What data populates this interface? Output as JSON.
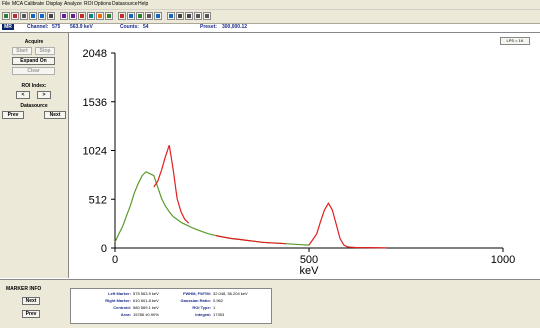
{
  "menu": [
    "File",
    "MCA",
    "Calibrate",
    "Display",
    "Analyze",
    "ROI",
    "Options",
    "Datasource",
    "Help"
  ],
  "toolbar": {
    "icons": [
      "start-icon",
      "stop-icon",
      "clear-icon",
      "copy-icon",
      "save-icon",
      "print-icon",
      "zoom-in-icon",
      "zoom-out-icon",
      "roi-icon",
      "mark-icon",
      "peak-icon",
      "scale-icon",
      "log-icon",
      "lin-icon",
      "auto-icon",
      "fit-icon",
      "prev-icon",
      "next-icon",
      "info-icon",
      "help-icon",
      "gear-icon",
      "about-icon"
    ]
  },
  "status": {
    "mode": "MR",
    "channel_label": "Channel:",
    "channel": "575",
    "energy": "563.9 keV",
    "counts_label": "Counts:",
    "counts": "54",
    "preset_label": "Preset:",
    "preset": "300,000.12"
  },
  "left": {
    "acquire": "Acquire",
    "start": "Start",
    "stop": "Stop",
    "expand": "Expand On",
    "clear": "Clear",
    "roi_label": "ROI Index:",
    "roi_prev": "<",
    "roi_next": ">",
    "datasource": "Datasource",
    "prev": "Prev",
    "next": "Next"
  },
  "plot": {
    "corner": "LPS = 1K"
  },
  "chart_data": {
    "type": "line",
    "xlabel": "keV",
    "xlim": [
      0,
      1000
    ],
    "ylim": [
      0,
      2048
    ],
    "xticks": [
      0,
      500,
      1000
    ],
    "yticks": [
      0,
      512,
      1024,
      1536,
      2048
    ],
    "grid": false,
    "series": [
      {
        "color": "#5a9a2a",
        "points": [
          [
            0,
            60
          ],
          [
            10,
            150
          ],
          [
            20,
            230
          ],
          [
            30,
            340
          ],
          [
            40,
            450
          ],
          [
            50,
            580
          ],
          [
            60,
            680
          ],
          [
            70,
            760
          ],
          [
            80,
            800
          ],
          [
            90,
            780
          ],
          [
            100,
            760
          ],
          [
            110,
            640
          ],
          [
            120,
            520
          ],
          [
            130,
            440
          ],
          [
            140,
            380
          ],
          [
            150,
            330
          ],
          [
            160,
            300
          ],
          [
            170,
            270
          ],
          [
            180,
            250
          ],
          [
            190,
            230
          ],
          [
            200,
            210
          ],
          [
            210,
            195
          ],
          [
            220,
            180
          ],
          [
            230,
            165
          ],
          [
            240,
            150
          ]
        ]
      },
      {
        "color": "#e02020",
        "points": [
          [
            100,
            640
          ],
          [
            110,
            700
          ],
          [
            120,
            820
          ],
          [
            130,
            960
          ],
          [
            140,
            1080
          ],
          [
            150,
            820
          ],
          [
            160,
            520
          ],
          [
            170,
            380
          ],
          [
            180,
            300
          ],
          [
            190,
            260
          ]
        ]
      },
      {
        "color": "#5a9a2a",
        "points": [
          [
            240,
            150
          ],
          [
            260,
            130
          ],
          [
            280,
            115
          ],
          [
            300,
            100
          ],
          [
            320,
            90
          ],
          [
            340,
            80
          ],
          [
            360,
            70
          ],
          [
            380,
            60
          ],
          [
            400,
            55
          ],
          [
            420,
            50
          ],
          [
            440,
            45
          ],
          [
            460,
            40
          ],
          [
            480,
            35
          ],
          [
            500,
            30
          ]
        ]
      },
      {
        "color": "#e02020",
        "points": [
          [
            260,
            130
          ],
          [
            280,
            115
          ],
          [
            300,
            100
          ],
          [
            320,
            90
          ],
          [
            340,
            80
          ],
          [
            360,
            70
          ],
          [
            380,
            60
          ],
          [
            400,
            55
          ],
          [
            420,
            50
          ],
          [
            440,
            45
          ]
        ]
      },
      {
        "color": "#e02020",
        "points": [
          [
            500,
            30
          ],
          [
            520,
            150
          ],
          [
            530,
            280
          ],
          [
            540,
            400
          ],
          [
            550,
            470
          ],
          [
            560,
            400
          ],
          [
            570,
            250
          ],
          [
            580,
            100
          ],
          [
            590,
            30
          ],
          [
            600,
            10
          ],
          [
            620,
            5
          ],
          [
            700,
            2
          ]
        ]
      }
    ]
  },
  "marker": {
    "title": "MARKER INFO",
    "next": "Next",
    "prev": "Prev",
    "left_marker_label": "Left Marker:",
    "left_marker": "575    563.9 keV",
    "right_marker_label": "Right Marker:",
    "right_marker": "610    601.8 keV",
    "centroid_label": "Centroid:",
    "centroid": "580    569.1 keV",
    "area_label": "Area:",
    "area": "15786    ±0.90%",
    "fwhm_label": "FWHM, FWTM:",
    "fwhm": "32.048, 56.204 keV",
    "gauss_label": "Gaussian Ratio:",
    "gauss": "0.962",
    "roitype_label": "ROI Type:",
    "roitype": "1",
    "integral_label": "Integral:",
    "integral": "17353"
  }
}
